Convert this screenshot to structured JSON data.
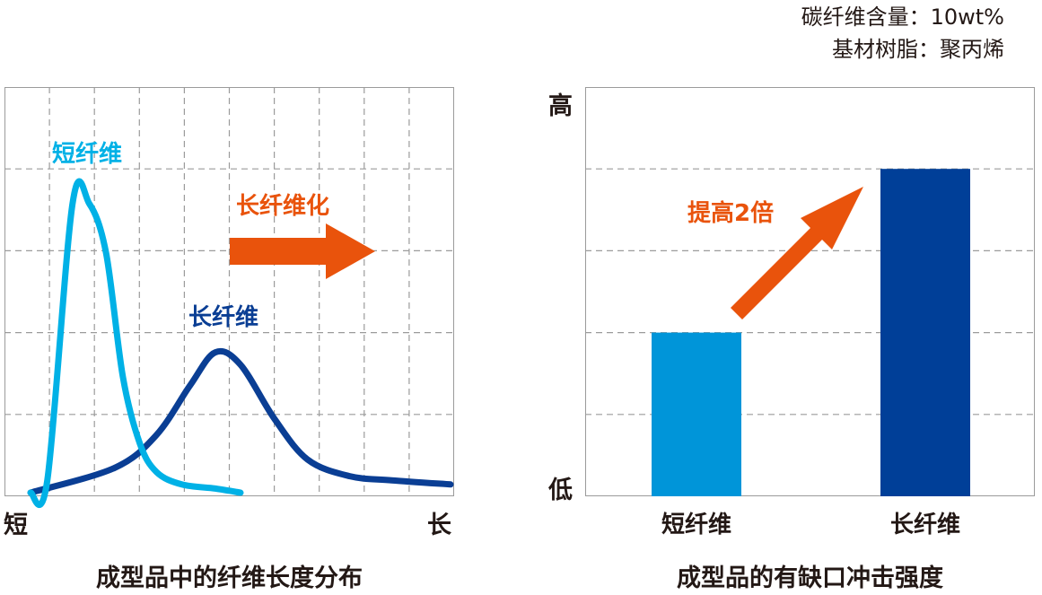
{
  "conditions": {
    "line1": "碳纤维含量：10wt%",
    "line2": "基材树脂：聚丙烯"
  },
  "colors": {
    "short_fiber": "#00b1e6",
    "long_fiber": "#0a3e94",
    "short_bar": "#0095d9",
    "long_bar": "#003f98",
    "arrow": "#e9530c",
    "grid": "#9b9b9b"
  },
  "chart_data": [
    {
      "type": "line",
      "title": "成型品中的纤维长度分布",
      "x_axis": {
        "start_label": "短",
        "end_label": "长"
      },
      "grid": true,
      "series": [
        {
          "name": "短纤维",
          "color": "#00b1e6",
          "x": [
            0.0,
            0.04,
            0.1,
            0.14,
            0.18,
            0.22,
            0.26,
            0.3,
            0.36,
            0.44,
            0.5
          ],
          "y": [
            0.0,
            0.03,
            0.7,
            0.7,
            0.58,
            0.28,
            0.12,
            0.05,
            0.02,
            0.01,
            0.0
          ]
        },
        {
          "name": "长纤维",
          "color": "#0a3e94",
          "x": [
            0.0,
            0.2,
            0.3,
            0.38,
            0.44,
            0.5,
            0.58,
            0.66,
            0.76,
            0.86,
            1.0
          ],
          "y": [
            0.0,
            0.06,
            0.14,
            0.26,
            0.34,
            0.31,
            0.18,
            0.08,
            0.04,
            0.03,
            0.02
          ]
        }
      ],
      "annotation": {
        "text": "长纤维化"
      }
    },
    {
      "type": "bar",
      "title": "成型品的有缺口冲击强度",
      "categories": [
        "短纤维",
        "长纤维"
      ],
      "values": [
        1,
        2
      ],
      "colors": [
        "#0095d9",
        "#003f98"
      ],
      "y_axis": {
        "low_label": "低",
        "high_label": "高"
      },
      "grid": true,
      "annotation": {
        "text": "提高2倍"
      }
    }
  ]
}
